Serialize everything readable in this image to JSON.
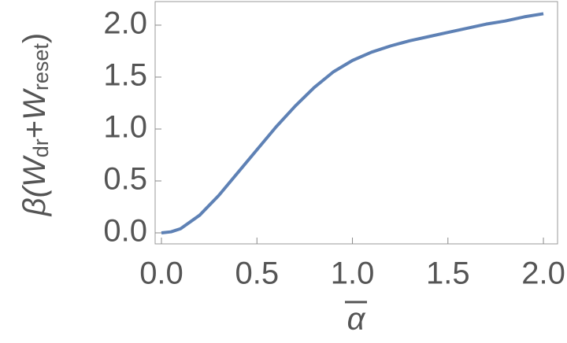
{
  "chart_data": {
    "type": "line",
    "xlabel": "α",
    "ylabel_parts": [
      "β(",
      "W",
      "dr",
      "+",
      "W",
      "reset",
      ")"
    ],
    "x": [
      0,
      0.05,
      0.1,
      0.2,
      0.3,
      0.4,
      0.5,
      0.6,
      0.7,
      0.8,
      0.9,
      1.0,
      1.1,
      1.2,
      1.3,
      1.4,
      1.5,
      1.6,
      1.7,
      1.8,
      1.9,
      2.0
    ],
    "series": [
      {
        "color": "#5e81b5",
        "values": [
          0,
          0.01,
          0.04,
          0.17,
          0.36,
          0.58,
          0.8,
          1.02,
          1.22,
          1.4,
          1.55,
          1.66,
          1.74,
          1.8,
          1.85,
          1.89,
          1.93,
          1.97,
          2.01,
          2.04,
          2.08,
          2.11
        ]
      }
    ],
    "xlim": [
      -0.033,
      2.074
    ],
    "ylim": [
      -0.106,
      2.227
    ],
    "xticks": [
      {
        "value": 0,
        "label": "0.0"
      },
      {
        "value": 0.5,
        "label": "0.5"
      },
      {
        "value": 1,
        "label": "1.0"
      },
      {
        "value": 1.5,
        "label": "1.5"
      },
      {
        "value": 2,
        "label": "2.0"
      }
    ],
    "yticks": [
      {
        "value": 0,
        "label": "0.0"
      },
      {
        "value": 0.5,
        "label": "0.5"
      },
      {
        "value": 1,
        "label": "1.0"
      },
      {
        "value": 1.5,
        "label": "1.5"
      },
      {
        "value": 2,
        "label": "2.0"
      }
    ]
  }
}
